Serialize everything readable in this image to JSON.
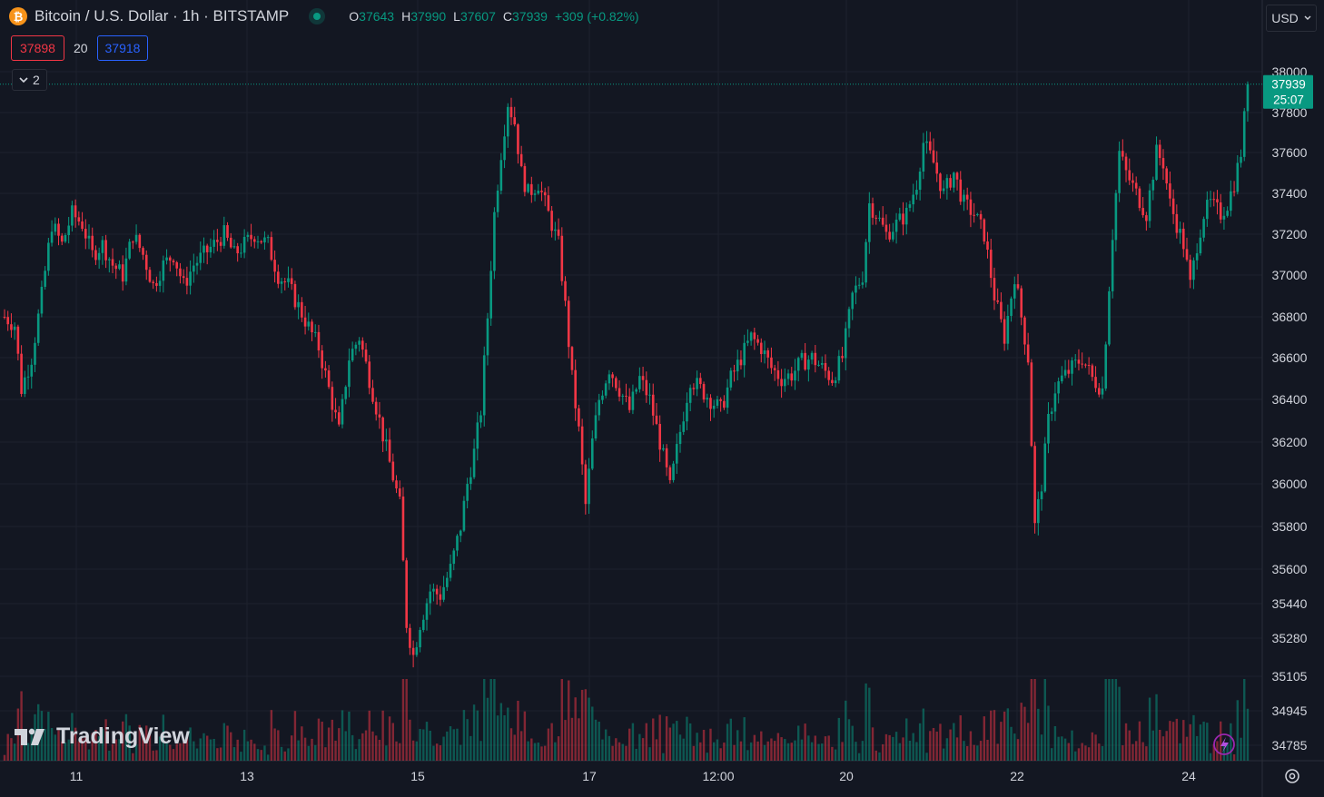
{
  "header": {
    "symbol": "Bitcoin / U.S. Dollar · 1h · BITSTAMP",
    "coin_icon": "₿",
    "ohlc": {
      "o_label": "O",
      "o": "37643",
      "h_label": "H",
      "h": "37990",
      "l_label": "L",
      "l": "37607",
      "c_label": "C",
      "c": "37939",
      "change": "+309 (+0.82%)"
    }
  },
  "trade": {
    "sell": "37898",
    "spread": "20",
    "buy": "37918"
  },
  "indicators_toggle": {
    "count": "2"
  },
  "currency": "USD",
  "watermark": "TradingView",
  "colors": {
    "up": "#089981",
    "down": "#f23645",
    "background": "#131722",
    "grid": "#2a2e39",
    "text": "#d1d4dc"
  },
  "price_label": {
    "price": "37939",
    "countdown": "25:07"
  },
  "chart_data": {
    "type": "candlestick",
    "series": [
      {
        "name": "BTCUSD"
      }
    ],
    "y_ticks": [
      34785,
      34945,
      35105,
      35280,
      35440,
      35600,
      35800,
      36000,
      36200,
      36400,
      36600,
      36800,
      37000,
      37200,
      37400,
      37600,
      37800,
      38000
    ],
    "y_tick_labels": [
      "34785",
      "34945",
      "35105",
      "35280",
      "35440",
      "35600",
      "35800",
      "36000",
      "36200",
      "36400",
      "36600",
      "36800",
      "37000",
      "37200",
      "37400",
      "37600",
      "37800",
      "38000"
    ],
    "x_ticks": [
      "11",
      "13",
      "15",
      "17",
      "12:00",
      "20",
      "22",
      "24"
    ],
    "ylim": [
      34700,
      38200
    ],
    "last_price": 37939,
    "grid": true,
    "anchors": [
      [
        0,
        36800
      ],
      [
        3,
        36760
      ],
      [
        5,
        36450
      ],
      [
        8,
        36600
      ],
      [
        11,
        36900
      ],
      [
        14,
        37250
      ],
      [
        17,
        37150
      ],
      [
        20,
        37300
      ],
      [
        23,
        37250
      ],
      [
        26,
        37100
      ],
      [
        29,
        37150
      ],
      [
        32,
        37050
      ],
      [
        35,
        37000
      ],
      [
        38,
        37200
      ],
      [
        41,
        37100
      ],
      [
        44,
        36950
      ],
      [
        47,
        37050
      ],
      [
        50,
        37100
      ],
      [
        53,
        36950
      ],
      [
        56,
        37050
      ],
      [
        59,
        37100
      ],
      [
        62,
        37150
      ],
      [
        65,
        37200
      ],
      [
        68,
        37100
      ],
      [
        71,
        37150
      ],
      [
        74,
        37200
      ],
      [
        78,
        37150
      ],
      [
        81,
        37000
      ],
      [
        84,
        36950
      ],
      [
        87,
        36850
      ],
      [
        90,
        36750
      ],
      [
        93,
        36650
      ],
      [
        96,
        36450
      ],
      [
        99,
        36250
      ],
      [
        102,
        36600
      ],
      [
        105,
        36700
      ],
      [
        108,
        36500
      ],
      [
        111,
        36300
      ],
      [
        114,
        36100
      ],
      [
        117,
        35900
      ],
      [
        119,
        35350
      ],
      [
        121,
        35200
      ],
      [
        123,
        35350
      ],
      [
        126,
        35500
      ],
      [
        129,
        35480
      ],
      [
        132,
        35600
      ],
      [
        135,
        35800
      ],
      [
        137,
        36000
      ],
      [
        139,
        36150
      ],
      [
        141,
        36350
      ],
      [
        143,
        36800
      ],
      [
        145,
        37300
      ],
      [
        147,
        37600
      ],
      [
        149,
        37850
      ],
      [
        151,
        37750
      ],
      [
        153,
        37500
      ],
      [
        155,
        37400
      ],
      [
        158,
        37450
      ],
      [
        161,
        37300
      ],
      [
        164,
        37150
      ],
      [
        166,
        36850
      ],
      [
        168,
        36500
      ],
      [
        170,
        36250
      ],
      [
        172,
        35900
      ],
      [
        174,
        36200
      ],
      [
        176,
        36400
      ],
      [
        179,
        36550
      ],
      [
        182,
        36450
      ],
      [
        185,
        36350
      ],
      [
        188,
        36500
      ],
      [
        191,
        36400
      ],
      [
        194,
        36200
      ],
      [
        197,
        35980
      ],
      [
        200,
        36250
      ],
      [
        203,
        36500
      ],
      [
        206,
        36450
      ],
      [
        209,
        36400
      ],
      [
        212,
        36350
      ],
      [
        215,
        36500
      ],
      [
        218,
        36600
      ],
      [
        221,
        36700
      ],
      [
        224,
        36650
      ],
      [
        227,
        36550
      ],
      [
        230,
        36500
      ],
      [
        233,
        36520
      ],
      [
        236,
        36580
      ],
      [
        239,
        36600
      ],
      [
        242,
        36550
      ],
      [
        245,
        36500
      ],
      [
        248,
        36600
      ],
      [
        251,
        36900
      ],
      [
        254,
        37000
      ],
      [
        256,
        37350
      ],
      [
        258,
        37300
      ],
      [
        261,
        37200
      ],
      [
        264,
        37250
      ],
      [
        267,
        37300
      ],
      [
        270,
        37450
      ],
      [
        272,
        37650
      ],
      [
        275,
        37550
      ],
      [
        278,
        37400
      ],
      [
        281,
        37500
      ],
      [
        284,
        37350
      ],
      [
        287,
        37300
      ],
      [
        290,
        37200
      ],
      [
        293,
        36900
      ],
      [
        296,
        36700
      ],
      [
        299,
        37000
      ],
      [
        301,
        36800
      ],
      [
        303,
        36600
      ],
      [
        305,
        35800
      ],
      [
        307,
        36000
      ],
      [
        309,
        36300
      ],
      [
        311,
        36450
      ],
      [
        313,
        36500
      ],
      [
        316,
        36550
      ],
      [
        319,
        36600
      ],
      [
        322,
        36500
      ],
      [
        325,
        36450
      ],
      [
        328,
        37200
      ],
      [
        330,
        37600
      ],
      [
        332,
        37500
      ],
      [
        335,
        37400
      ],
      [
        338,
        37300
      ],
      [
        341,
        37600
      ],
      [
        343,
        37550
      ],
      [
        345,
        37350
      ],
      [
        347,
        37250
      ],
      [
        349,
        37150
      ],
      [
        351,
        36950
      ],
      [
        353,
        37150
      ],
      [
        355,
        37300
      ],
      [
        357,
        37350
      ],
      [
        360,
        37300
      ],
      [
        362,
        37350
      ],
      [
        364,
        37450
      ],
      [
        366,
        37600
      ],
      [
        368,
        37939
      ]
    ]
  }
}
